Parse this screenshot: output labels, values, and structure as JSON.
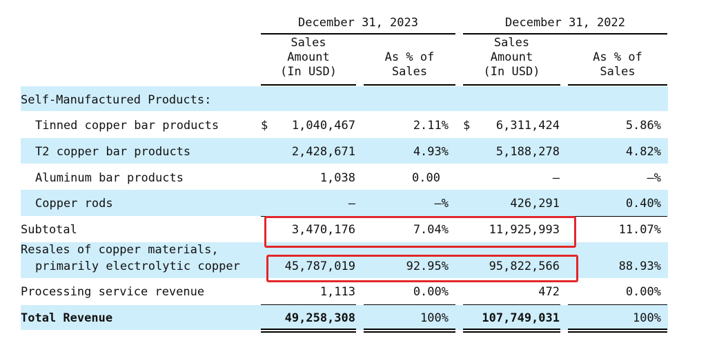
{
  "header": {
    "period_2023": "December  31, 2023",
    "period_2022": "December  31, 2022",
    "col_amount_l1": "Sales",
    "col_amount_l2": "Amount",
    "col_amount_l3": "(In USD)",
    "col_pct_l1": "As % of",
    "col_pct_l2": "Sales"
  },
  "currency_symbol": "$",
  "rows": {
    "section": {
      "label": "Self-Manufactured Products:"
    },
    "tinned": {
      "label": "Tinned copper bar products",
      "amt2023": "1,040,467",
      "pct2023": "2.11%",
      "amt2022": "6,311,424",
      "pct2022": "5.86%"
    },
    "t2": {
      "label": "T2 copper bar products",
      "amt2023": "2,428,671",
      "pct2023": "4.93%",
      "amt2022": "5,188,278",
      "pct2022": "4.82%"
    },
    "aluminum": {
      "label": "Aluminum bar products",
      "amt2023": "1,038",
      "pct2023": "0.00",
      "amt2022": "—",
      "pct2022": "—%"
    },
    "rods": {
      "label": "Copper rods",
      "amt2023": "—",
      "pct2023": "—%",
      "amt2022": "426,291",
      "pct2022": "0.40%"
    },
    "subtotal": {
      "label": "Subtotal",
      "amt2023": "3,470,176",
      "pct2023": "7.04%",
      "amt2022": "11,925,993",
      "pct2022": "11.07%"
    },
    "resales": {
      "label_l1": "Resales of copper materials,",
      "label_l2": "primarily electrolytic copper",
      "amt2023": "45,787,019",
      "pct2023": "92.95%",
      "amt2022": "95,822,566",
      "pct2022": "88.93%"
    },
    "processing": {
      "label": "Processing service revenue",
      "amt2023": "1,113",
      "pct2023": "0.00%",
      "amt2022": "472",
      "pct2022": "0.00%"
    },
    "total": {
      "label": "Total Revenue",
      "amt2023": "49,258,308",
      "pct2023": "100%",
      "amt2022": "107,749,031",
      "pct2022": "100%"
    }
  },
  "colors": {
    "band": "#cfeefb",
    "highlight": "#e3262a"
  }
}
